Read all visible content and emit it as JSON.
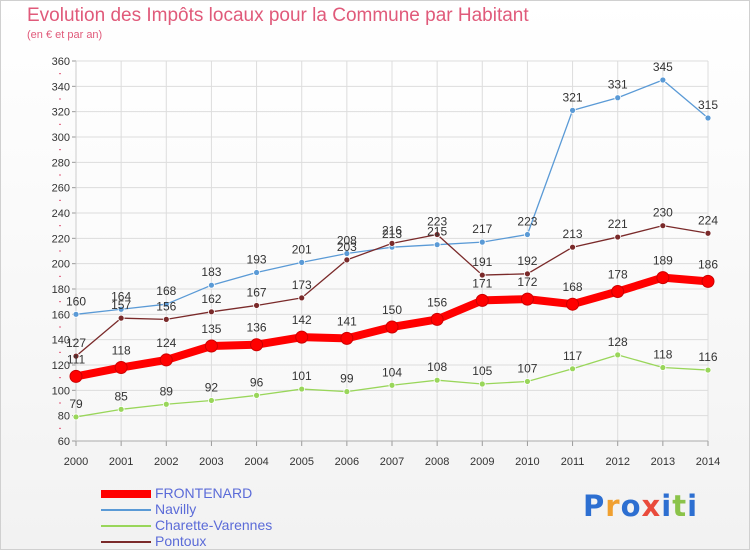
{
  "header": {
    "title": "Evolution des Impôts locaux pour la Commune par Habitant",
    "subtitle": "(en € et par an)"
  },
  "logo": {
    "text": "Proxiti",
    "colors": [
      "#2d6fd1",
      "#f0a030",
      "#2d6fd1",
      "#e94b3c",
      "#2d6fd1",
      "#8bc34a",
      "#2d6fd1"
    ]
  },
  "chart_data": {
    "type": "line",
    "x": [
      2000,
      2001,
      2002,
      2003,
      2004,
      2005,
      2006,
      2007,
      2008,
      2009,
      2010,
      2011,
      2012,
      2013,
      2014
    ],
    "ylim": [
      60,
      360
    ],
    "yticks": [
      60,
      80,
      100,
      120,
      140,
      160,
      180,
      200,
      220,
      240,
      260,
      280,
      300,
      320,
      340,
      360
    ],
    "grid": true,
    "legend_position": "bottom-left",
    "series": [
      {
        "name": "FRONTENARD",
        "color": "#ff0000",
        "width": 8,
        "values": [
          111,
          118,
          124,
          135,
          136,
          142,
          141,
          150,
          156,
          171,
          172,
          168,
          178,
          189,
          186
        ]
      },
      {
        "name": "Navilly",
        "color": "#5a9ad6",
        "width": 1.3,
        "values": [
          160,
          164,
          168,
          183,
          193,
          201,
          208,
          213,
          215,
          217,
          223,
          321,
          331,
          345,
          315
        ]
      },
      {
        "name": "Charette-Varennes",
        "color": "#99d65a",
        "width": 1.3,
        "values": [
          79,
          85,
          89,
          92,
          96,
          101,
          99,
          104,
          108,
          105,
          107,
          117,
          128,
          118,
          116
        ]
      },
      {
        "name": "Pontoux",
        "color": "#7a2a2a",
        "width": 1.3,
        "values": [
          127,
          157,
          156,
          162,
          167,
          173,
          203,
          216,
          223,
          191,
          192,
          213,
          221,
          230,
          224
        ]
      }
    ],
    "labels_shown": [
      [
        111,
        118,
        124,
        135,
        136,
        142,
        141,
        150,
        156,
        171,
        172,
        168,
        178,
        189,
        186
      ],
      [
        160,
        164,
        168,
        183,
        193,
        201,
        208,
        213,
        215,
        217,
        223,
        321,
        331,
        345,
        315
      ],
      [
        79,
        85,
        89,
        92,
        96,
        101,
        99,
        104,
        108,
        105,
        107,
        117,
        128,
        118,
        116
      ],
      [
        127,
        157,
        156,
        162,
        167,
        173,
        203,
        216,
        223,
        191,
        192,
        213,
        221,
        230,
        224
      ]
    ]
  }
}
